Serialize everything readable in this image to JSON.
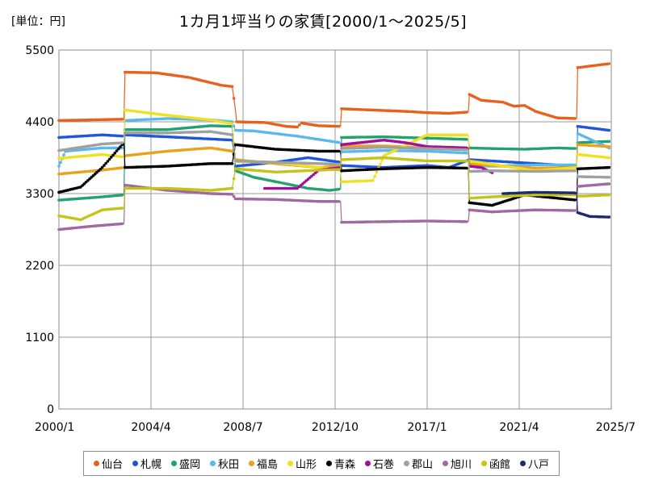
{
  "chart_data": {
    "type": "line",
    "title": "1カ月1坪当りの家賃[2000/1～2025/5]",
    "unit_label": "[単位：円]",
    "xlabel": "",
    "ylabel": "",
    "ylim": [
      0,
      5500
    ],
    "yticks": [
      0,
      1100,
      2200,
      3300,
      4400,
      5500
    ],
    "xlim": [
      2000.0,
      2025.5
    ],
    "xticks": [
      {
        "value": 2000.0,
        "label": "2000/1"
      },
      {
        "value": 2004.25,
        "label": "2004/4"
      },
      {
        "value": 2008.5,
        "label": "2008/7"
      },
      {
        "value": 2012.75,
        "label": "2012/10"
      },
      {
        "value": 2017.0,
        "label": "2017/1"
      },
      {
        "value": 2021.25,
        "label": "2021/4"
      },
      {
        "value": 2025.5,
        "label": "2025/7"
      }
    ],
    "grid": true,
    "legend_position": "bottom",
    "series": [
      {
        "name": "仙台",
        "color": "#e8601c",
        "points": [
          [
            2000.0,
            4420
          ],
          [
            2003.0,
            4440
          ],
          [
            2003.05,
            5160
          ],
          [
            2004.5,
            5150
          ],
          [
            2006.0,
            5080
          ],
          [
            2007.5,
            4960
          ],
          [
            2008.0,
            4940
          ],
          [
            2008.15,
            4580
          ],
          [
            2008.2,
            4400
          ],
          [
            2009.5,
            4390
          ],
          [
            2010.5,
            4330
          ],
          [
            2011.0,
            4320
          ],
          [
            2011.2,
            4380
          ],
          [
            2012.0,
            4340
          ],
          [
            2013.0,
            4330
          ],
          [
            2013.05,
            4600
          ],
          [
            2014.5,
            4580
          ],
          [
            2016.0,
            4560
          ],
          [
            2017.0,
            4540
          ],
          [
            2018.0,
            4530
          ],
          [
            2018.9,
            4550
          ],
          [
            2018.95,
            4820
          ],
          [
            2019.5,
            4730
          ],
          [
            2020.5,
            4700
          ],
          [
            2021.0,
            4640
          ],
          [
            2021.5,
            4650
          ],
          [
            2022.0,
            4560
          ],
          [
            2023.0,
            4460
          ],
          [
            2023.9,
            4450
          ],
          [
            2023.95,
            5230
          ],
          [
            2025.4,
            5290
          ]
        ]
      },
      {
        "name": "札幌",
        "color": "#1f56d9",
        "points": [
          [
            2000.0,
            4160
          ],
          [
            2002.0,
            4200
          ],
          [
            2003.0,
            4180
          ],
          [
            2003.05,
            4200
          ],
          [
            2005.0,
            4170
          ],
          [
            2008.0,
            4120
          ],
          [
            2008.15,
            3720
          ],
          [
            2010.0,
            3780
          ],
          [
            2011.5,
            3850
          ],
          [
            2013.0,
            3780
          ],
          [
            2013.05,
            3730
          ],
          [
            2015.0,
            3700
          ],
          [
            2017.0,
            3730
          ],
          [
            2018.0,
            3700
          ],
          [
            2018.95,
            3820
          ],
          [
            2020.0,
            3800
          ],
          [
            2022.0,
            3760
          ],
          [
            2023.9,
            3720
          ],
          [
            2023.95,
            4330
          ],
          [
            2025.4,
            4270
          ]
        ]
      },
      {
        "name": "盛岡",
        "color": "#22a36e",
        "points": [
          [
            2000.0,
            3200
          ],
          [
            2002.0,
            3250
          ],
          [
            2003.0,
            3280
          ],
          [
            2003.05,
            4280
          ],
          [
            2005.0,
            4280
          ],
          [
            2007.0,
            4340
          ],
          [
            2008.0,
            4330
          ],
          [
            2008.15,
            3650
          ],
          [
            2009.0,
            3550
          ],
          [
            2010.5,
            3450
          ],
          [
            2011.5,
            3380
          ],
          [
            2012.5,
            3350
          ],
          [
            2013.0,
            3370
          ],
          [
            2013.05,
            4160
          ],
          [
            2015.0,
            4170
          ],
          [
            2017.0,
            4150
          ],
          [
            2018.9,
            4130
          ],
          [
            2018.95,
            4000
          ],
          [
            2020.0,
            3990
          ],
          [
            2021.5,
            3980
          ],
          [
            2023.0,
            4000
          ],
          [
            2023.9,
            3990
          ],
          [
            2023.95,
            4080
          ],
          [
            2025.4,
            4100
          ]
        ]
      },
      {
        "name": "秋田",
        "color": "#5bb8ec",
        "points": [
          [
            2000.0,
            3720
          ],
          [
            2000.3,
            3950
          ],
          [
            2002.0,
            4000
          ],
          [
            2003.0,
            4000
          ],
          [
            2003.05,
            4420
          ],
          [
            2005.0,
            4450
          ],
          [
            2007.0,
            4430
          ],
          [
            2008.0,
            4400
          ],
          [
            2008.15,
            4270
          ],
          [
            2009.0,
            4260
          ],
          [
            2011.0,
            4180
          ],
          [
            2013.0,
            4080
          ],
          [
            2013.05,
            3940
          ],
          [
            2015.0,
            3960
          ],
          [
            2017.0,
            3950
          ],
          [
            2018.9,
            3920
          ],
          [
            2018.95,
            3720
          ],
          [
            2020.0,
            3720
          ],
          [
            2022.0,
            3740
          ],
          [
            2023.9,
            3740
          ],
          [
            2023.95,
            4220
          ],
          [
            2025.4,
            4000
          ]
        ]
      },
      {
        "name": "福島",
        "color": "#e8a21c",
        "points": [
          [
            2000.0,
            3600
          ],
          [
            2002.0,
            3660
          ],
          [
            2003.0,
            3700
          ],
          [
            2003.05,
            3880
          ],
          [
            2005.0,
            3950
          ],
          [
            2007.0,
            4000
          ],
          [
            2008.0,
            3950
          ],
          [
            2008.15,
            3820
          ],
          [
            2010.0,
            3760
          ],
          [
            2012.0,
            3700
          ],
          [
            2013.0,
            3720
          ],
          [
            2013.05,
            4030
          ],
          [
            2015.0,
            4030
          ],
          [
            2017.0,
            4000
          ],
          [
            2018.9,
            3990
          ],
          [
            2018.95,
            3760
          ],
          [
            2020.0,
            3730
          ],
          [
            2022.0,
            3690
          ],
          [
            2023.9,
            3700
          ],
          [
            2023.95,
            4050
          ],
          [
            2025.4,
            4020
          ]
        ]
      },
      {
        "name": "山形",
        "color": "#f0e020",
        "points": [
          [
            2000.0,
            3840
          ],
          [
            2002.0,
            3900
          ],
          [
            2003.0,
            3860
          ],
          [
            2003.05,
            4580
          ],
          [
            2005.0,
            4500
          ],
          [
            2007.0,
            4430
          ],
          [
            2008.0,
            4370
          ],
          [
            2008.15,
            3790
          ],
          [
            2010.0,
            3780
          ],
          [
            2012.0,
            3700
          ],
          [
            2013.0,
            3660
          ],
          [
            2013.05,
            3480
          ],
          [
            2014.5,
            3500
          ],
          [
            2015.0,
            3880
          ],
          [
            2017.0,
            4200
          ],
          [
            2018.9,
            4200
          ],
          [
            2018.95,
            3800
          ],
          [
            2020.0,
            3750
          ],
          [
            2022.0,
            3650
          ],
          [
            2023.9,
            3700
          ],
          [
            2023.95,
            3900
          ],
          [
            2025.4,
            3850
          ]
        ]
      },
      {
        "name": "青森",
        "color": "#000000",
        "points": [
          [
            2000.0,
            3320
          ],
          [
            2001.0,
            3400
          ],
          [
            2002.0,
            3700
          ],
          [
            2003.0,
            4080
          ],
          [
            2003.05,
            3700
          ],
          [
            2005.0,
            3720
          ],
          [
            2007.0,
            3760
          ],
          [
            2008.0,
            3760
          ],
          [
            2008.15,
            4050
          ],
          [
            2010.0,
            3980
          ],
          [
            2012.0,
            3950
          ],
          [
            2013.0,
            3950
          ],
          [
            2013.05,
            3650
          ],
          [
            2015.0,
            3680
          ],
          [
            2017.0,
            3700
          ],
          [
            2018.9,
            3690
          ],
          [
            2018.95,
            3160
          ],
          [
            2020.0,
            3120
          ],
          [
            2021.5,
            3280
          ],
          [
            2023.9,
            3200
          ],
          [
            2023.95,
            3680
          ],
          [
            2025.4,
            3700
          ]
        ]
      },
      {
        "name": "石巻",
        "color": "#a0109a",
        "points": [
          [
            2009.5,
            3380
          ],
          [
            2011.0,
            3380
          ],
          [
            2012.0,
            3660
          ],
          [
            2013.0,
            3700
          ],
          [
            2013.05,
            4050
          ],
          [
            2015.0,
            4120
          ],
          [
            2016.0,
            4080
          ],
          [
            2017.0,
            4020
          ],
          [
            2018.9,
            4000
          ],
          [
            2018.95,
            3720
          ],
          [
            2019.5,
            3700
          ],
          [
            2020.0,
            3620
          ]
        ]
      },
      {
        "name": "郡山",
        "color": "#a0a0a0",
        "points": [
          [
            2000.0,
            3960
          ],
          [
            2002.0,
            4060
          ],
          [
            2003.0,
            4080
          ],
          [
            2003.05,
            4230
          ],
          [
            2005.0,
            4230
          ],
          [
            2007.0,
            4250
          ],
          [
            2008.0,
            4200
          ],
          [
            2008.15,
            3800
          ],
          [
            2010.0,
            3780
          ],
          [
            2012.0,
            3760
          ],
          [
            2013.0,
            3750
          ],
          [
            2013.05,
            3990
          ],
          [
            2015.0,
            4010
          ],
          [
            2017.0,
            3990
          ],
          [
            2018.9,
            3970
          ],
          [
            2018.95,
            3640
          ],
          [
            2020.0,
            3650
          ],
          [
            2022.0,
            3640
          ],
          [
            2023.9,
            3650
          ],
          [
            2023.95,
            3560
          ],
          [
            2025.4,
            3550
          ]
        ]
      },
      {
        "name": "旭川",
        "color": "#9e6aa0",
        "points": [
          [
            2000.0,
            2750
          ],
          [
            2001.5,
            2800
          ],
          [
            2003.0,
            2840
          ],
          [
            2003.05,
            3430
          ],
          [
            2005.0,
            3350
          ],
          [
            2007.0,
            3300
          ],
          [
            2008.0,
            3290
          ],
          [
            2008.15,
            3220
          ],
          [
            2010.0,
            3210
          ],
          [
            2012.0,
            3180
          ],
          [
            2013.0,
            3180
          ],
          [
            2013.05,
            2860
          ],
          [
            2015.0,
            2870
          ],
          [
            2017.0,
            2880
          ],
          [
            2018.9,
            2870
          ],
          [
            2018.95,
            3050
          ],
          [
            2020.0,
            3020
          ],
          [
            2022.0,
            3050
          ],
          [
            2023.9,
            3040
          ],
          [
            2023.95,
            3410
          ],
          [
            2025.4,
            3450
          ]
        ]
      },
      {
        "name": "函館",
        "color": "#c3c318",
        "points": [
          [
            2000.0,
            2960
          ],
          [
            2001.0,
            2900
          ],
          [
            2002.0,
            3050
          ],
          [
            2003.0,
            3080
          ],
          [
            2003.05,
            3380
          ],
          [
            2005.0,
            3380
          ],
          [
            2007.0,
            3350
          ],
          [
            2008.0,
            3380
          ],
          [
            2008.15,
            3680
          ],
          [
            2010.0,
            3630
          ],
          [
            2012.0,
            3660
          ],
          [
            2013.0,
            3670
          ],
          [
            2013.05,
            3820
          ],
          [
            2015.0,
            3850
          ],
          [
            2017.0,
            3800
          ],
          [
            2018.9,
            3800
          ],
          [
            2018.95,
            3230
          ],
          [
            2020.0,
            3250
          ],
          [
            2022.0,
            3280
          ],
          [
            2023.9,
            3280
          ],
          [
            2023.95,
            3260
          ],
          [
            2025.4,
            3280
          ]
        ]
      },
      {
        "name": "八戸",
        "color": "#1c2a6e",
        "points": [
          [
            2020.5,
            3300
          ],
          [
            2022.0,
            3320
          ],
          [
            2023.9,
            3310
          ],
          [
            2023.95,
            3010
          ],
          [
            2024.5,
            2950
          ],
          [
            2025.4,
            2940
          ]
        ]
      }
    ]
  }
}
